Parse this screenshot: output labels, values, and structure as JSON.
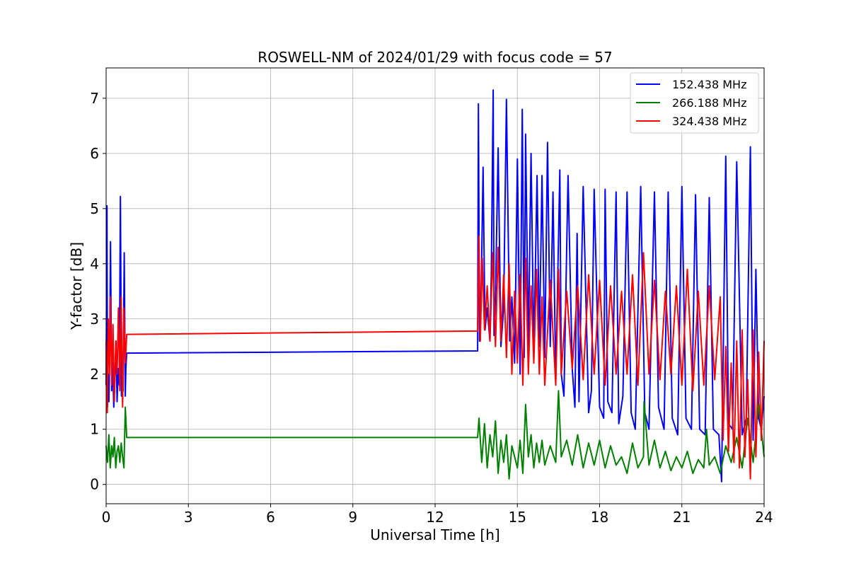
{
  "chart_data": {
    "type": "line",
    "title": "ROSWELL-NM of 2024/01/29 with focus code = 57",
    "xlabel": "Universal Time [h]",
    "ylabel": "Y-factor [dB]",
    "xlim": [
      0,
      24
    ],
    "ylim": [
      -0.35,
      7.55
    ],
    "xticks": [
      0,
      3,
      6,
      9,
      12,
      15,
      18,
      21,
      24
    ],
    "yticks": [
      0,
      1,
      2,
      3,
      4,
      5,
      6,
      7
    ],
    "grid": true,
    "legend_position": "top-right",
    "series": [
      {
        "name": "152.438 MHz",
        "color": "#0000ff",
        "x": [
          0.0,
          0.03,
          0.05,
          0.08,
          0.1,
          0.13,
          0.16,
          0.2,
          0.24,
          0.28,
          0.32,
          0.36,
          0.4,
          0.44,
          0.48,
          0.52,
          0.56,
          0.58,
          0.62,
          0.66,
          0.7,
          0.72,
          0.75,
          13.55,
          13.58,
          13.62,
          13.68,
          13.75,
          13.82,
          13.9,
          14.0,
          14.05,
          14.12,
          14.15,
          14.2,
          14.3,
          14.4,
          14.5,
          14.6,
          14.72,
          14.8,
          14.9,
          15.0,
          15.1,
          15.18,
          15.25,
          15.3,
          15.4,
          15.5,
          15.6,
          15.72,
          15.8,
          15.9,
          16.0,
          16.1,
          16.2,
          16.3,
          16.4,
          16.55,
          16.6,
          16.7,
          16.85,
          17.0,
          17.1,
          17.18,
          17.25,
          17.4,
          17.6,
          17.7,
          17.8,
          18.0,
          18.15,
          18.2,
          18.3,
          18.45,
          18.6,
          18.7,
          18.85,
          19.0,
          19.15,
          19.3,
          19.5,
          19.65,
          19.8,
          20.0,
          20.15,
          20.35,
          20.5,
          20.65,
          20.85,
          21.0,
          21.15,
          21.35,
          21.5,
          21.65,
          21.85,
          22.0,
          22.15,
          22.35,
          22.45,
          22.6,
          22.7,
          22.85,
          23.0,
          23.2,
          23.35,
          23.5,
          23.6,
          23.7,
          23.8,
          23.9,
          24.0
        ],
        "y": [
          1.8,
          5.05,
          1.4,
          2.0,
          1.5,
          2.3,
          4.4,
          1.7,
          2.2,
          1.4,
          1.9,
          2.6,
          1.5,
          2.1,
          1.8,
          5.22,
          1.6,
          2.2,
          1.7,
          4.2,
          1.6,
          2.1,
          2.38,
          2.42,
          6.9,
          2.6,
          3.5,
          5.75,
          2.8,
          3.2,
          2.6,
          3.8,
          7.15,
          2.7,
          3.4,
          6.1,
          2.5,
          3.2,
          6.98,
          2.6,
          3.4,
          2.2,
          5.9,
          2.0,
          6.8,
          2.3,
          6.35,
          2.5,
          6.0,
          2.4,
          5.6,
          2.5,
          5.6,
          2.3,
          6.2,
          2.5,
          5.3,
          1.9,
          5.7,
          2.0,
          1.6,
          5.6,
          2.1,
          1.4,
          4.55,
          1.5,
          5.4,
          1.3,
          1.7,
          5.35,
          1.4,
          1.2,
          5.35,
          1.5,
          1.3,
          5.3,
          1.1,
          1.6,
          5.3,
          1.3,
          1.0,
          5.4,
          1.3,
          1.0,
          5.3,
          1.4,
          1.0,
          5.3,
          1.2,
          0.9,
          5.4,
          1.2,
          1.0,
          5.25,
          1.0,
          0.9,
          5.2,
          1.0,
          0.9,
          0.05,
          5.95,
          1.1,
          1.0,
          5.85,
          0.9,
          1.2,
          6.12,
          0.8,
          3.9,
          1.2,
          1.0,
          1.6
        ]
      },
      {
        "name": "266.188 MHz",
        "color": "#008000",
        "x": [
          0.0,
          0.05,
          0.1,
          0.15,
          0.2,
          0.25,
          0.3,
          0.35,
          0.4,
          0.45,
          0.5,
          0.55,
          0.6,
          0.65,
          0.7,
          0.75,
          13.55,
          13.6,
          13.7,
          13.8,
          13.9,
          14.0,
          14.1,
          14.2,
          14.3,
          14.4,
          14.5,
          14.6,
          14.7,
          14.8,
          14.9,
          15.0,
          15.1,
          15.2,
          15.3,
          15.4,
          15.5,
          15.6,
          15.7,
          15.8,
          15.9,
          16.0,
          16.2,
          16.4,
          16.5,
          16.6,
          16.8,
          17.0,
          17.2,
          17.4,
          17.6,
          17.8,
          18.0,
          18.2,
          18.4,
          18.6,
          18.8,
          19.0,
          19.2,
          19.4,
          19.6,
          19.62,
          19.8,
          20.0,
          20.2,
          20.4,
          20.6,
          20.8,
          21.0,
          21.2,
          21.4,
          21.6,
          21.8,
          21.9,
          22.0,
          22.2,
          22.4,
          22.6,
          22.8,
          23.0,
          23.2,
          23.4,
          23.6,
          23.8,
          24.0
        ],
        "y": [
          0.7,
          0.4,
          0.9,
          0.3,
          0.7,
          0.5,
          0.85,
          0.3,
          0.6,
          0.7,
          0.4,
          0.75,
          0.5,
          0.3,
          1.4,
          0.85,
          0.85,
          1.2,
          0.4,
          1.1,
          0.3,
          0.9,
          0.5,
          1.15,
          0.2,
          0.8,
          0.4,
          0.9,
          0.1,
          0.7,
          0.5,
          0.3,
          0.8,
          0.2,
          1.45,
          0.5,
          0.9,
          0.3,
          0.75,
          0.4,
          0.8,
          0.35,
          0.7,
          0.4,
          1.7,
          0.5,
          0.8,
          0.35,
          0.9,
          0.3,
          0.75,
          0.35,
          0.8,
          0.3,
          0.7,
          0.35,
          0.5,
          0.2,
          0.75,
          0.3,
          0.5,
          1.5,
          0.35,
          0.8,
          0.3,
          0.6,
          0.25,
          0.5,
          0.3,
          0.6,
          0.2,
          0.45,
          0.3,
          1.0,
          0.35,
          0.5,
          0.2,
          0.7,
          0.4,
          0.85,
          0.3,
          1.2,
          0.4,
          1.45,
          0.5
        ]
      },
      {
        "name": "324.438 MHz",
        "color": "#ff0000",
        "x": [
          0.0,
          0.04,
          0.08,
          0.12,
          0.16,
          0.2,
          0.25,
          0.3,
          0.35,
          0.4,
          0.45,
          0.5,
          0.55,
          0.6,
          0.65,
          0.7,
          0.75,
          13.55,
          13.6,
          13.65,
          13.72,
          13.8,
          13.9,
          14.0,
          14.1,
          14.2,
          14.3,
          14.4,
          14.5,
          14.6,
          14.7,
          14.8,
          14.9,
          15.0,
          15.1,
          15.2,
          15.3,
          15.4,
          15.5,
          15.6,
          15.7,
          15.8,
          15.9,
          16.0,
          16.2,
          16.4,
          16.5,
          16.6,
          16.8,
          17.0,
          17.2,
          17.4,
          17.6,
          17.8,
          18.0,
          18.2,
          18.4,
          18.6,
          18.8,
          19.0,
          19.2,
          19.4,
          19.6,
          19.8,
          20.0,
          20.2,
          20.4,
          20.6,
          20.8,
          21.0,
          21.2,
          21.4,
          21.6,
          21.8,
          22.0,
          22.2,
          22.4,
          22.5,
          22.6,
          22.7,
          22.8,
          22.9,
          23.0,
          23.1,
          23.2,
          23.3,
          23.4,
          23.5,
          23.6,
          23.7,
          23.8,
          23.9,
          24.0
        ],
        "y": [
          2.6,
          1.3,
          3.0,
          2.0,
          3.4,
          1.8,
          2.9,
          1.5,
          2.6,
          2.0,
          3.2,
          1.7,
          3.4,
          1.4,
          3.2,
          2.2,
          2.72,
          2.78,
          4.5,
          2.6,
          4.1,
          2.8,
          3.6,
          2.6,
          4.2,
          2.5,
          4.3,
          2.6,
          3.8,
          2.3,
          4.0,
          2.0,
          3.5,
          2.2,
          3.8,
          1.8,
          4.1,
          2.0,
          3.6,
          2.2,
          3.9,
          2.0,
          3.4,
          1.8,
          3.7,
          1.8,
          3.9,
          2.0,
          3.5,
          2.1,
          3.6,
          1.9,
          3.8,
          2.0,
          3.7,
          1.8,
          3.6,
          2.0,
          3.5,
          2.0,
          3.8,
          1.8,
          4.2,
          2.0,
          3.7,
          1.9,
          3.5,
          2.0,
          3.6,
          1.8,
          3.9,
          1.7,
          3.5,
          1.8,
          3.6,
          1.9,
          3.4,
          0.8,
          2.5,
          0.6,
          2.2,
          0.4,
          2.6,
          0.3,
          2.8,
          0.5,
          1.9,
          0.1,
          2.8,
          0.5,
          2.4,
          0.8,
          2.6
        ]
      }
    ]
  }
}
